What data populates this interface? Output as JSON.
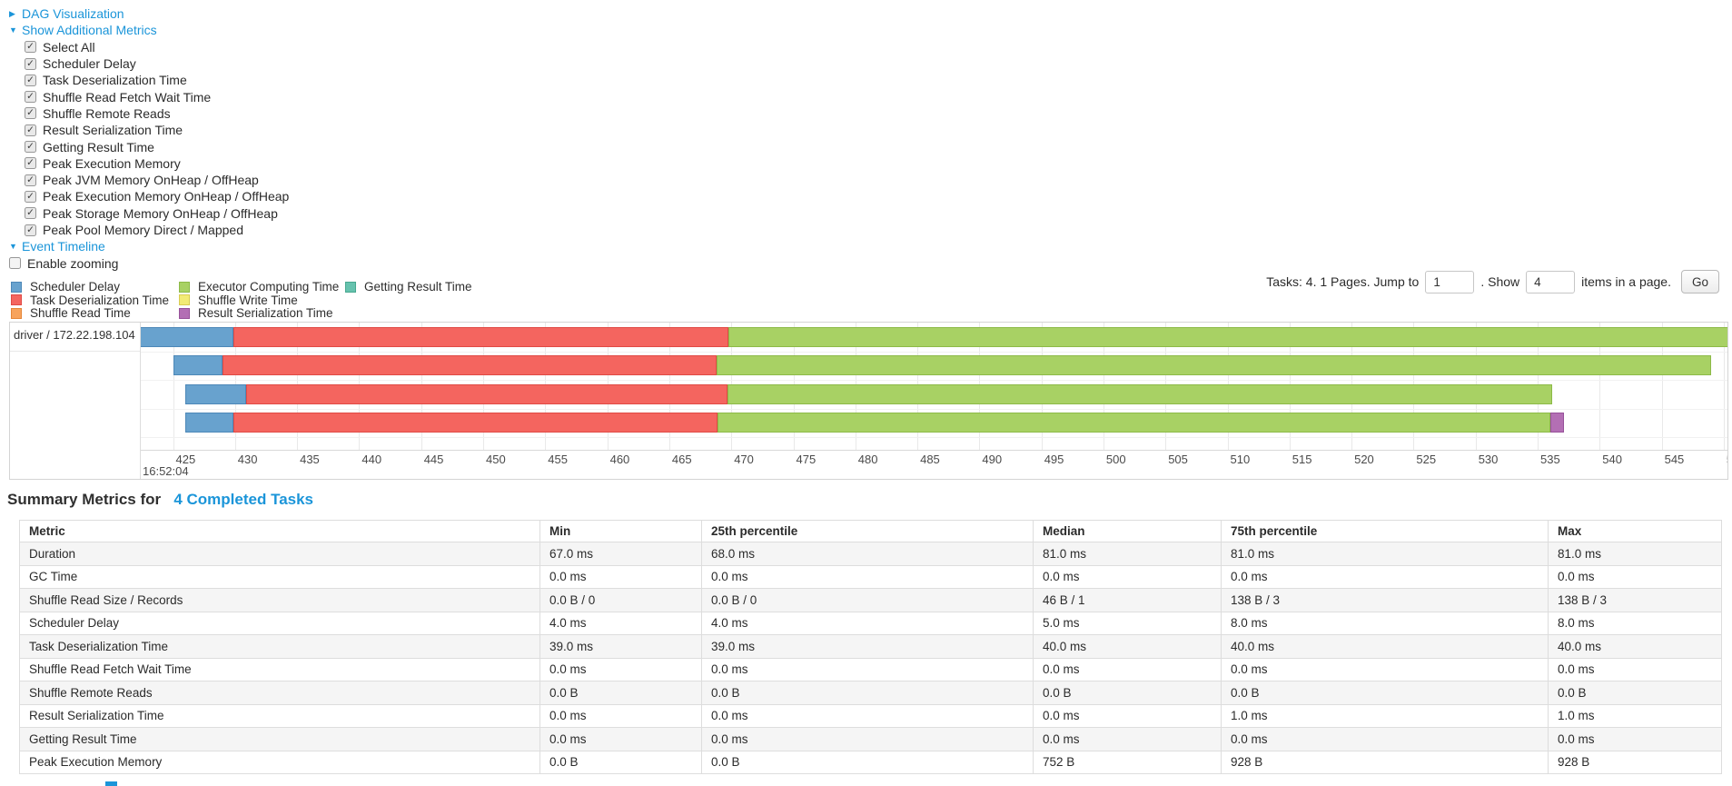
{
  "colors": {
    "link": "#1b95d9",
    "stripe": "#f5f5f5",
    "table_border": "#dddddd",
    "chart_border": "#d4d4d4"
  },
  "controls": {
    "dag_label": "DAG Visualization",
    "metrics_label": "Show Additional Metrics",
    "metric_checkboxes": [
      "Select All",
      "Scheduler Delay",
      "Task Deserialization Time",
      "Shuffle Read Fetch Wait Time",
      "Shuffle Remote Reads",
      "Result Serialization Time",
      "Getting Result Time",
      "Peak Execution Memory",
      "Peak JVM Memory OnHeap / OffHeap",
      "Peak Execution Memory OnHeap / OffHeap",
      "Peak Storage Memory OnHeap / OffHeap",
      "Peak Pool Memory Direct / Mapped"
    ],
    "timeline_label": "Event Timeline",
    "enable_zooming_label": "Enable zooming"
  },
  "pagination": {
    "tasks_text": "Tasks: 4. 1 Pages. Jump to",
    "jump_value": "1",
    "show_text": ". Show",
    "show_value": "4",
    "items_text": "items in a page.",
    "go_label": "Go"
  },
  "chart_data": {
    "type": "timeline",
    "title": "Event Timeline",
    "group_label": "driver / 172.22.198.104",
    "axis": {
      "major_label": "16:52:04",
      "unit": "ms",
      "min": 422.4,
      "max": 550.3,
      "tick_start": 425,
      "tick_end": 550,
      "tick_step": 5
    },
    "palette": {
      "scheduler_delay": {
        "fill": "#68a2ce",
        "border": "#4d88b8"
      },
      "task_deserialization": {
        "fill": "#f4655f",
        "border": "#e04a45"
      },
      "shuffle_read": {
        "fill": "#f7a35c",
        "border": "#e58638"
      },
      "executor_computing": {
        "fill": "#a8d164",
        "border": "#8dba48"
      },
      "shuffle_write": {
        "fill": "#f2eb75",
        "border": "#d8cc52"
      },
      "result_serialization": {
        "fill": "#b36fb4",
        "border": "#97519a"
      },
      "getting_result": {
        "fill": "#66c2ae",
        "border": "#47a88f"
      }
    },
    "legend": [
      {
        "label": "Scheduler Delay",
        "key": "scheduler_delay",
        "col": 0
      },
      {
        "label": "Task Deserialization Time",
        "key": "task_deserialization",
        "col": 0
      },
      {
        "label": "Shuffle Read Time",
        "key": "shuffle_read",
        "col": 0
      },
      {
        "label": "Executor Computing Time",
        "key": "executor_computing",
        "col": 1
      },
      {
        "label": "Shuffle Write Time",
        "key": "shuffle_write",
        "col": 1
      },
      {
        "label": "Result Serialization Time",
        "key": "result_serialization",
        "col": 1
      },
      {
        "label": "Getting Result Time",
        "key": "getting_result",
        "col": 2
      }
    ],
    "tasks": [
      {
        "segments": [
          {
            "key": "scheduler_delay",
            "start": 422.0,
            "end": 429.9
          },
          {
            "key": "task_deserialization",
            "start": 429.9,
            "end": 469.8
          },
          {
            "key": "executor_computing",
            "start": 469.8,
            "end": 550.8
          }
        ]
      },
      {
        "segments": [
          {
            "key": "scheduler_delay",
            "start": 425.0,
            "end": 429.0
          },
          {
            "key": "task_deserialization",
            "start": 429.0,
            "end": 468.8
          },
          {
            "key": "executor_computing",
            "start": 468.8,
            "end": 549.0
          }
        ]
      },
      {
        "segments": [
          {
            "key": "scheduler_delay",
            "start": 426.0,
            "end": 430.9
          },
          {
            "key": "task_deserialization",
            "start": 430.9,
            "end": 469.7
          },
          {
            "key": "executor_computing",
            "start": 469.7,
            "end": 536.2
          }
        ]
      },
      {
        "segments": [
          {
            "key": "scheduler_delay",
            "start": 426.0,
            "end": 429.9
          },
          {
            "key": "task_deserialization",
            "start": 429.9,
            "end": 468.9
          },
          {
            "key": "executor_computing",
            "start": 468.9,
            "end": 536.0
          },
          {
            "key": "result_serialization",
            "start": 536.0,
            "end": 537.1
          }
        ]
      }
    ]
  },
  "summary": {
    "title_prefix": "Summary Metrics for",
    "title_link": "4 Completed Tasks",
    "table": {
      "headers": [
        "Metric",
        "Min",
        "25th percentile",
        "Median",
        "75th percentile",
        "Max"
      ],
      "rows": [
        {
          "metric": "Duration",
          "values": [
            "67.0 ms",
            "68.0 ms",
            "81.0 ms",
            "81.0 ms",
            "81.0 ms"
          ]
        },
        {
          "metric": "GC Time",
          "values": [
            "0.0 ms",
            "0.0 ms",
            "0.0 ms",
            "0.0 ms",
            "0.0 ms"
          ]
        },
        {
          "metric": "Shuffle Read Size / Records",
          "values": [
            "0.0 B / 0",
            "0.0 B / 0",
            "46 B / 1",
            "138 B / 3",
            "138 B / 3"
          ]
        },
        {
          "metric": "Scheduler Delay",
          "values": [
            "4.0 ms",
            "4.0 ms",
            "5.0 ms",
            "8.0 ms",
            "8.0 ms"
          ]
        },
        {
          "metric": "Task Deserialization Time",
          "values": [
            "39.0 ms",
            "39.0 ms",
            "40.0 ms",
            "40.0 ms",
            "40.0 ms"
          ]
        },
        {
          "metric": "Shuffle Read Fetch Wait Time",
          "values": [
            "0.0 ms",
            "0.0 ms",
            "0.0 ms",
            "0.0 ms",
            "0.0 ms"
          ]
        },
        {
          "metric": "Shuffle Remote Reads",
          "values": [
            "0.0 B",
            "0.0 B",
            "0.0 B",
            "0.0 B",
            "0.0 B"
          ]
        },
        {
          "metric": "Result Serialization Time",
          "values": [
            "0.0 ms",
            "0.0 ms",
            "0.0 ms",
            "1.0 ms",
            "1.0 ms"
          ]
        },
        {
          "metric": "Getting Result Time",
          "values": [
            "0.0 ms",
            "0.0 ms",
            "0.0 ms",
            "0.0 ms",
            "0.0 ms"
          ]
        },
        {
          "metric": "Peak Execution Memory",
          "values": [
            "0.0 B",
            "0.0 B",
            "752 B",
            "928 B",
            "928 B"
          ]
        }
      ]
    }
  }
}
